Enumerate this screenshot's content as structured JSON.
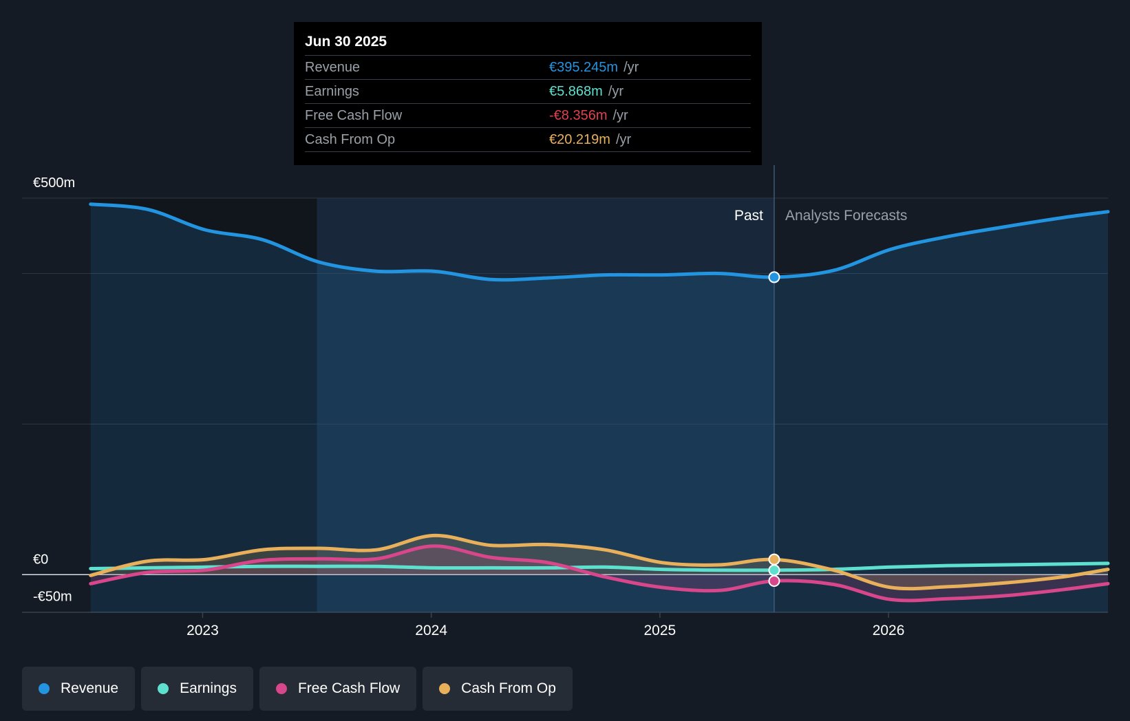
{
  "tooltip": {
    "date": "Jun 30 2025",
    "rows": [
      {
        "label": "Revenue",
        "value": "€395.245m",
        "unit": "/yr",
        "color": "#2394df"
      },
      {
        "label": "Earnings",
        "value": "€5.868m",
        "unit": "/yr",
        "color": "#5ee0cf"
      },
      {
        "label": "Free Cash Flow",
        "value": "-€8.356m",
        "unit": "/yr",
        "color": "#e0404f"
      },
      {
        "label": "Cash From Op",
        "value": "€20.219m",
        "unit": "/yr",
        "color": "#e9b05c"
      }
    ]
  },
  "chart_data": {
    "type": "area",
    "title": "",
    "ylabel": "",
    "xlabel": "",
    "ylim": [
      -50,
      500
    ],
    "y_tick_labels": [
      {
        "value": 500,
        "label": "€500m"
      },
      {
        "value": 0,
        "label": "€0"
      },
      {
        "value": -50,
        "label": "-€50m"
      }
    ],
    "gridlines": [
      500,
      400,
      200,
      0
    ],
    "x_range": [
      2022.2,
      2026.95
    ],
    "x_ticks": [
      {
        "value": 2022.99,
        "label": "2023"
      },
      {
        "value": 2023.99,
        "label": "2024"
      },
      {
        "value": 2024.99,
        "label": "2025"
      },
      {
        "value": 2025.99,
        "label": "2026"
      }
    ],
    "past_label": "Past",
    "forecast_label": "Analysts Forecasts",
    "highlight_start": 2023.49,
    "divider_x": 2025.49,
    "series": [
      {
        "name": "Revenue",
        "color": "#2394df",
        "fill": "area",
        "x": [
          2022.5,
          2022.75,
          2023.0,
          2023.25,
          2023.5,
          2023.75,
          2024.0,
          2024.25,
          2024.5,
          2024.75,
          2025.0,
          2025.25,
          2025.49,
          2025.75,
          2026.0,
          2026.25,
          2026.5,
          2026.75,
          2026.95
        ],
        "values": [
          492,
          485,
          458,
          445,
          415,
          403,
          403,
          392,
          394,
          398,
          398,
          400,
          395,
          404,
          432,
          449,
          462,
          474,
          482
        ]
      },
      {
        "name": "Earnings",
        "color": "#5ee0cf",
        "fill": "none",
        "x": [
          2022.5,
          2022.75,
          2023.0,
          2023.25,
          2023.5,
          2023.75,
          2024.0,
          2024.25,
          2024.5,
          2024.75,
          2025.0,
          2025.25,
          2025.49,
          2025.75,
          2026.0,
          2026.25,
          2026.5,
          2026.75,
          2026.95
        ],
        "values": [
          8,
          9,
          10,
          11,
          11,
          11,
          9,
          9,
          9,
          10,
          7,
          6,
          5.9,
          7,
          10,
          12,
          13,
          14,
          15
        ]
      },
      {
        "name": "Free Cash Flow",
        "color": "#d8468b",
        "fill": "zero",
        "x": [
          2022.5,
          2022.75,
          2023.0,
          2023.25,
          2023.5,
          2023.75,
          2024.0,
          2024.25,
          2024.5,
          2024.75,
          2025.0,
          2025.25,
          2025.49,
          2025.75,
          2026.0,
          2026.25,
          2026.5,
          2026.75,
          2026.95
        ],
        "values": [
          -12,
          3,
          6,
          19,
          21,
          21,
          38,
          23,
          16,
          -3,
          -17,
          -21,
          -8.4,
          -13,
          -33,
          -32,
          -28,
          -20,
          -12
        ]
      },
      {
        "name": "Cash From Op",
        "color": "#e9b05c",
        "fill": "zero",
        "x": [
          2022.5,
          2022.75,
          2023.0,
          2023.25,
          2023.5,
          2023.75,
          2024.0,
          2024.25,
          2024.5,
          2024.75,
          2025.0,
          2025.25,
          2025.49,
          2025.75,
          2026.0,
          2026.25,
          2026.5,
          2026.75,
          2026.95
        ],
        "values": [
          -1,
          18,
          20,
          33,
          35,
          33,
          52,
          39,
          40,
          33,
          16,
          13,
          20.2,
          6,
          -17,
          -16,
          -11,
          -3,
          7
        ]
      }
    ]
  },
  "legend": [
    {
      "label": "Revenue",
      "color": "#2394df"
    },
    {
      "label": "Earnings",
      "color": "#5ee0cf"
    },
    {
      "label": "Free Cash Flow",
      "color": "#d8468b"
    },
    {
      "label": "Cash From Op",
      "color": "#e9b05c"
    }
  ]
}
